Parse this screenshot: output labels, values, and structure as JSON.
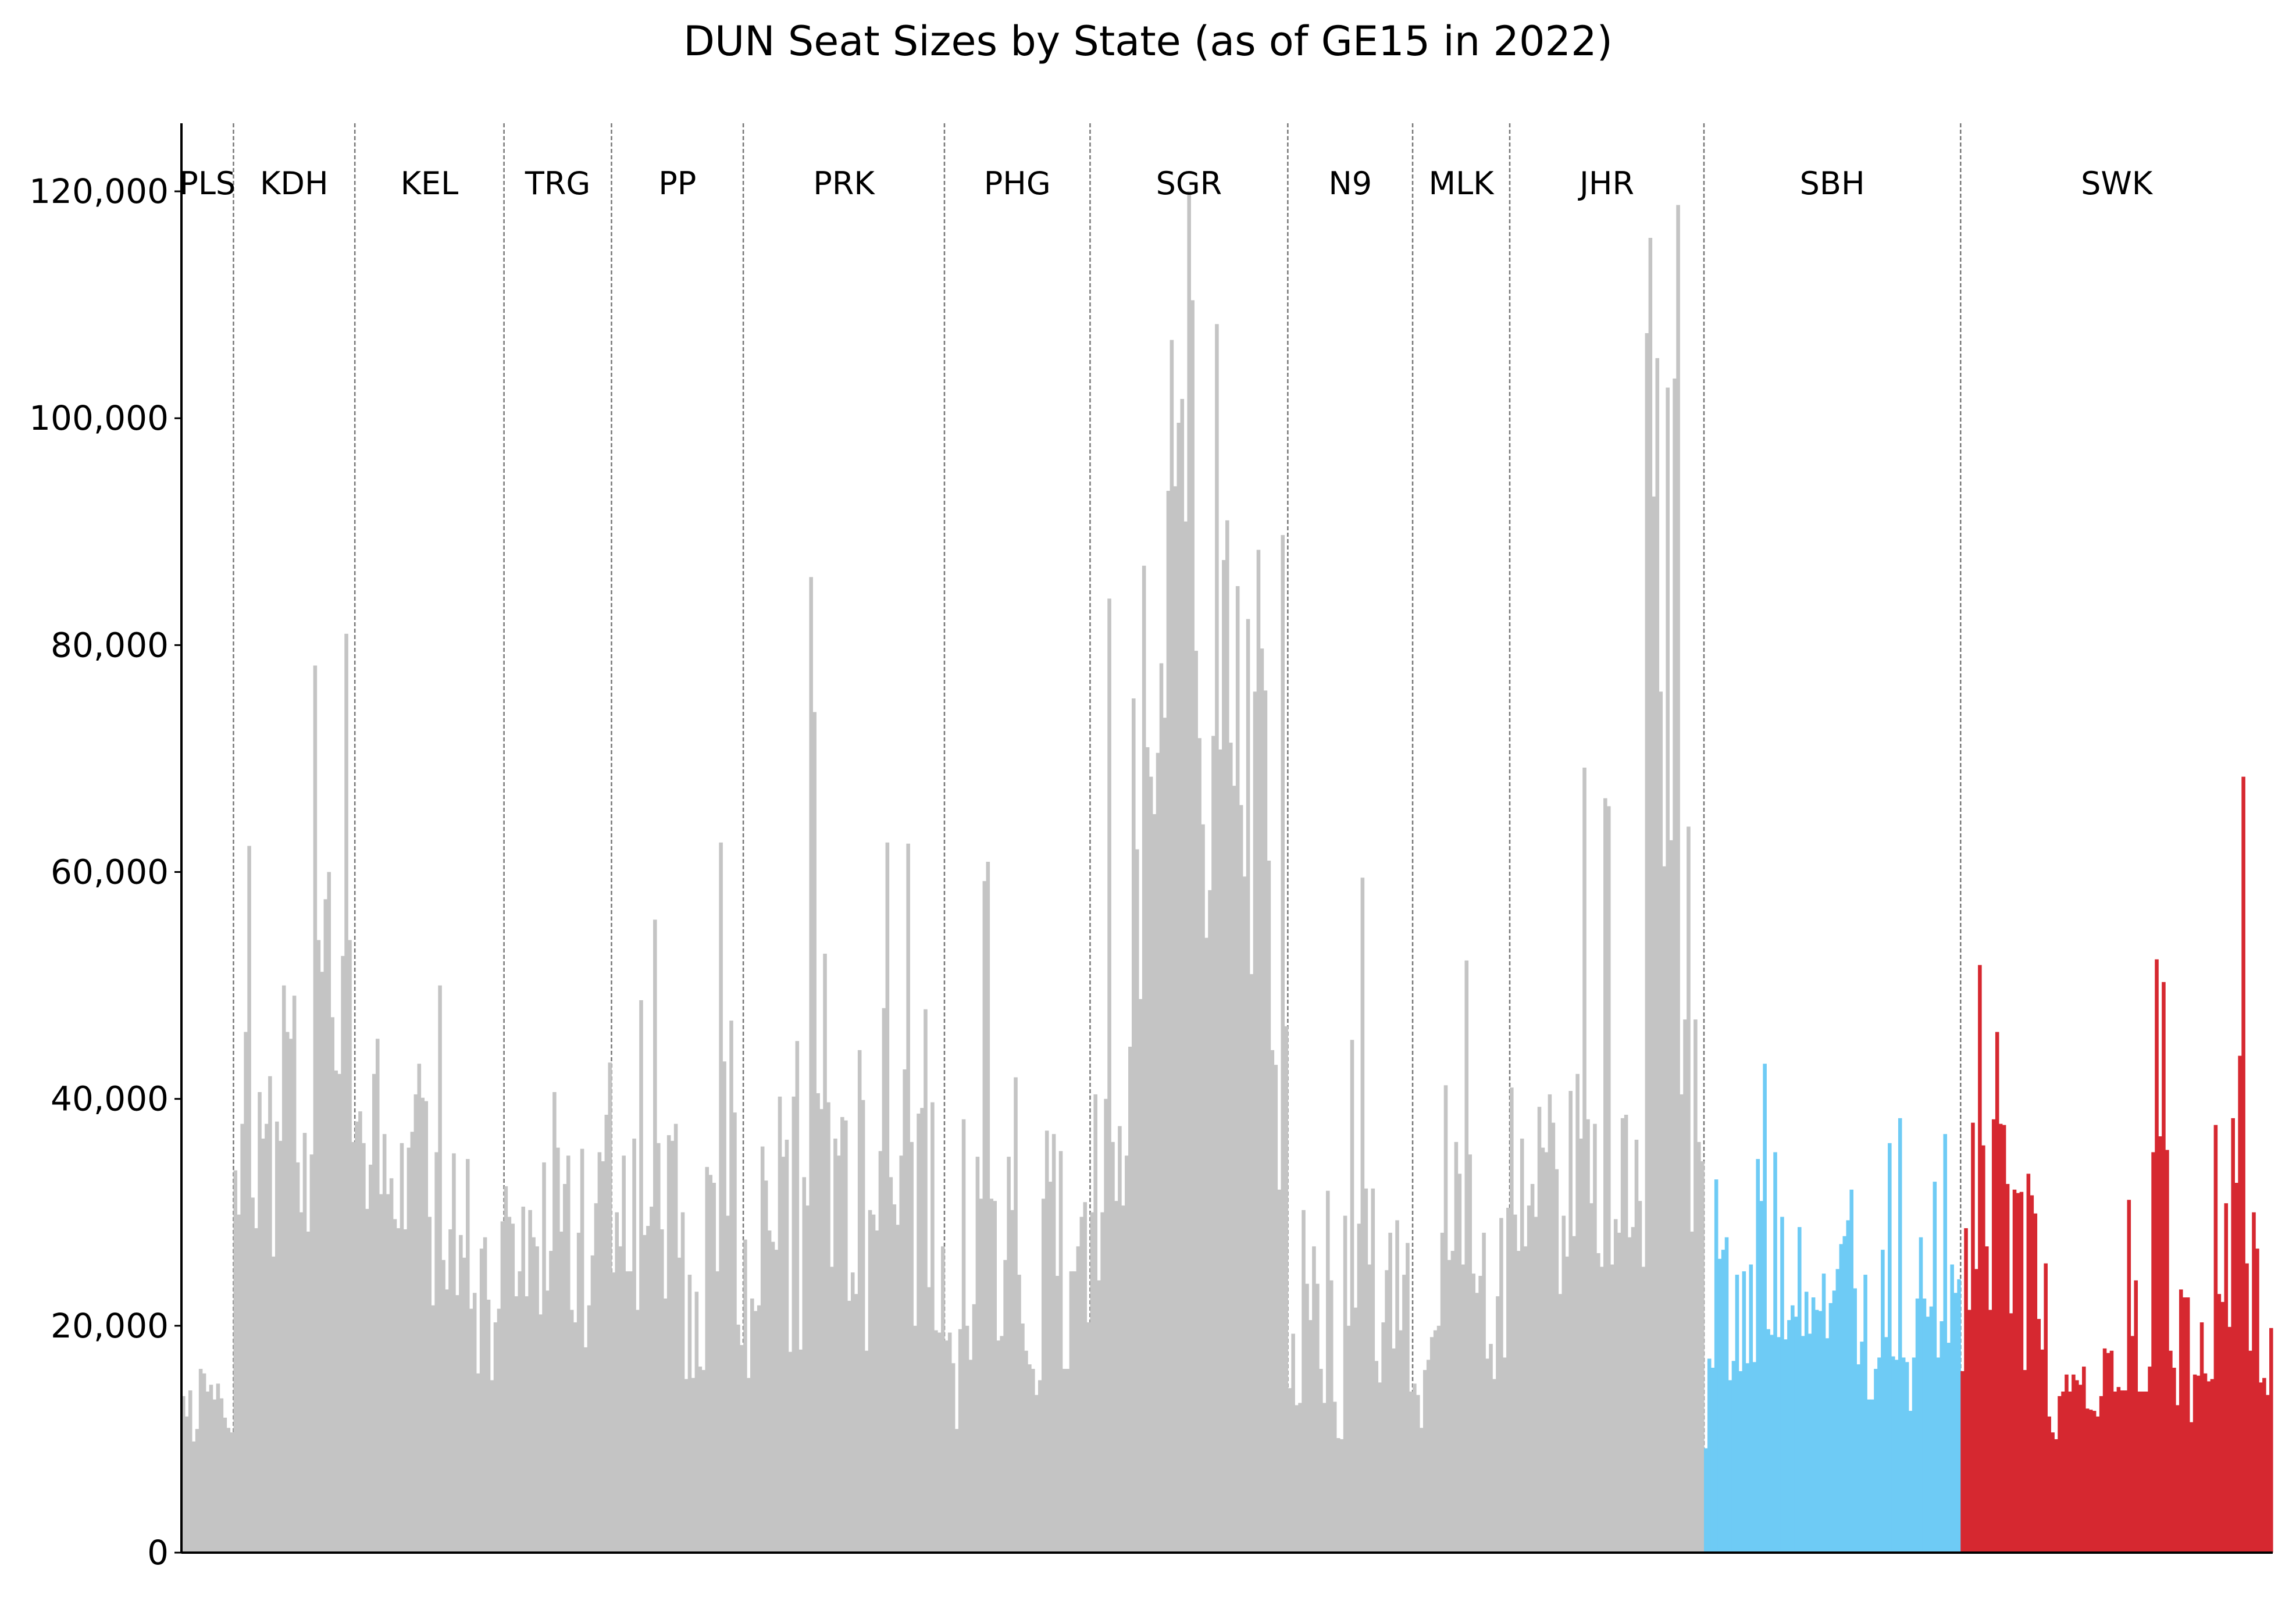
{
  "chart_data": {
    "type": "bar",
    "title": "DUN Seat Sizes by State (as of GE15 in 2022)",
    "xlabel": "",
    "ylabel": "",
    "ylim": [
      0,
      126000
    ],
    "yticks": [
      0,
      20000,
      40000,
      60000,
      80000,
      100000,
      120000
    ],
    "ytick_labels": [
      "0",
      "20,000",
      "40,000",
      "60,000",
      "80,000",
      "100,000",
      "120,000"
    ],
    "grid": false,
    "legend": "none",
    "colors": {
      "peninsular": "#c4c4c4",
      "sabah": "#6ecbf5",
      "sarawak": "#d62830",
      "divider": "#777777"
    },
    "states": [
      {
        "code": "PLS",
        "group": "peninsular",
        "values": [
          13800,
          12000,
          14300,
          9800,
          10900,
          16200,
          15800,
          14200,
          14800,
          13500,
          14900,
          13600,
          11900,
          11000,
          10600
        ]
      },
      {
        "code": "KDH",
        "group": "peninsular",
        "values": [
          33700,
          29800,
          37800,
          45900,
          62300,
          31300,
          28600,
          40600,
          36500,
          37800,
          42000,
          26100,
          38000,
          36300,
          50000,
          45900,
          45300,
          49100,
          34400,
          30000,
          37000,
          28300,
          35100,
          78200,
          54000,
          51200,
          57600,
          60000,
          47200,
          42500,
          42200,
          52600,
          81000,
          54000,
          36200
        ]
      },
      {
        "code": "KEL",
        "group": "peninsular",
        "values": [
          38000,
          38900,
          36100,
          30300,
          34200,
          42200,
          45300,
          31600,
          36900,
          31600,
          33000,
          29400,
          28600,
          36100,
          28500,
          35700,
          37100,
          40400,
          43100,
          40100,
          39800,
          29600,
          21800,
          35300,
          50000,
          25800,
          23200,
          28500,
          35200,
          22700,
          28000,
          26000,
          34700,
          21500,
          22900,
          15800,
          26800,
          27800,
          22300,
          15200,
          20300,
          21500,
          29200
        ]
      },
      {
        "code": "TRG",
        "group": "peninsular",
        "values": [
          32300,
          29600,
          29000,
          22600,
          24800,
          30500,
          22600,
          30200,
          27800,
          27000,
          21000,
          34400,
          23100,
          26600,
          40600,
          35700,
          28300,
          32500,
          35000,
          21400,
          20300,
          28200,
          35600,
          18100,
          21800,
          26200,
          30800,
          35300,
          34500,
          38600,
          43200
        ]
      },
      {
        "code": "PP",
        "group": "peninsular",
        "values": [
          24700,
          30000,
          27000,
          35000,
          24800,
          24800,
          36500,
          21400,
          48700,
          28000,
          28800,
          30500,
          55800,
          36100,
          28500,
          22400,
          36800,
          36300,
          37800,
          26000,
          30000,
          15300,
          24500,
          15400,
          23000,
          16400,
          16100,
          34000,
          33300,
          32600,
          24800,
          62600,
          43300,
          29700,
          46900,
          38800,
          20100,
          18300
        ]
      },
      {
        "code": "PRK",
        "group": "peninsular",
        "values": [
          27600,
          15400,
          22400,
          21300,
          21800,
          35800,
          32800,
          28400,
          27400,
          26700,
          40200,
          34900,
          36400,
          17700,
          40200,
          45100,
          17900,
          33100,
          30600,
          86000,
          74100,
          40500,
          39100,
          52800,
          39700,
          25200,
          36500,
          35000,
          38400,
          38100,
          22200,
          24700,
          22800,
          44300,
          39900,
          17800,
          30200,
          29800,
          28400,
          35400,
          48000,
          62600,
          33100,
          30700,
          28900,
          35000,
          42600,
          62500,
          36200,
          20000,
          38700,
          39200,
          47900,
          23400,
          39700,
          19600,
          19400,
          27000
        ]
      },
      {
        "code": "PHG",
        "group": "peninsular",
        "values": [
          18700,
          19400,
          16700,
          10900,
          19700,
          38200,
          20000,
          17000,
          21900,
          34900,
          31200,
          59200,
          60900,
          31200,
          31000,
          18700,
          19100,
          25800,
          34900,
          30200,
          41900,
          24500,
          20200,
          17800,
          16600,
          16200,
          13900,
          15200,
          31200,
          37200,
          32700,
          36900,
          24400,
          35400,
          16200,
          16200,
          24800,
          24800,
          27000,
          29600,
          30900,
          20300
        ]
      },
      {
        "code": "SGR",
        "group": "peninsular",
        "values": [
          30000,
          40400,
          24000,
          30000,
          40000,
          84100,
          36200,
          31000,
          37600,
          30600,
          35000,
          44600,
          75300,
          62000,
          48800,
          87000,
          71000,
          68400,
          65100,
          70500,
          78400,
          73600,
          93600,
          106900,
          94000,
          99600,
          101700,
          90900,
          120000,
          110400,
          79500,
          71800,
          64200,
          54200,
          58400,
          72000,
          108300,
          70800,
          87500,
          91000,
          71400,
          67600,
          85200,
          65900,
          59600,
          82300,
          51000,
          75900,
          88400,
          79700,
          76000,
          61000,
          44300,
          43000,
          32000,
          89700,
          46400
        ]
      },
      {
        "code": "N9",
        "group": "peninsular",
        "values": [
          14500,
          19300,
          13000,
          13200,
          30200,
          23700,
          20500,
          27000,
          23700,
          16200,
          13200,
          31900,
          24000,
          13300,
          10100,
          10000,
          29700,
          20000,
          45200,
          21600,
          29000,
          59500,
          32100,
          25400,
          32100,
          16900,
          15000,
          20300,
          24900,
          28200,
          18000,
          29300,
          19600,
          24500,
          27300,
          14200
        ]
      },
      {
        "code": "MLK",
        "group": "peninsular",
        "values": [
          14900,
          13900,
          11000,
          16100,
          17000,
          19000,
          19600,
          20000,
          28200,
          41200,
          25800,
          26600,
          36200,
          33400,
          25400,
          52200,
          35100,
          24600,
          22900,
          24400,
          28200,
          17100,
          18400,
          15300,
          22600,
          29500,
          17200,
          30400
        ]
      },
      {
        "code": "JHR",
        "group": "peninsular",
        "values": [
          41000,
          29800,
          26600,
          36500,
          27000,
          30600,
          32500,
          29600,
          39300,
          35700,
          35300,
          40400,
          37900,
          33800,
          22800,
          29700,
          26100,
          40700,
          27900,
          42200,
          36500,
          69200,
          38200,
          30800,
          37800,
          26400,
          25200,
          66500,
          65800,
          25400,
          29400,
          28200,
          38300,
          38600,
          27800,
          28700,
          36400,
          31000,
          25200,
          107500,
          115900,
          93100,
          105300,
          75900,
          60500,
          102700,
          62800,
          103500,
          118800,
          40400,
          47000,
          64000,
          28300,
          47000,
          36200,
          34500
        ]
      },
      {
        "code": "SBH",
        "group": "sabah",
        "values": [
          9200,
          17100,
          16300,
          32900,
          25900,
          26700,
          27800,
          15200,
          16900,
          24500,
          16000,
          24800,
          16700,
          25400,
          16800,
          34700,
          31000,
          43100,
          19700,
          19200,
          35300,
          19000,
          29600,
          18800,
          20500,
          21800,
          20800,
          28700,
          19100,
          23000,
          19300,
          22500,
          21400,
          21300,
          24600,
          18900,
          22000,
          23100,
          25000,
          27200,
          27900,
          29300,
          32000,
          23300,
          16600,
          18600,
          24500,
          13500,
          13500,
          16200,
          17200,
          26700,
          19000,
          36100,
          17300,
          17000,
          38300,
          17200,
          16800,
          12500,
          17200,
          22400,
          27800,
          22400,
          20800,
          21700,
          32700,
          17200,
          20400,
          36900,
          18500,
          25400,
          22900,
          24100
        ]
      },
      {
        "code": "SWK",
        "group": "sarawak",
        "values": [
          16000,
          28600,
          21400,
          37900,
          25000,
          51800,
          35900,
          27000,
          21400,
          38200,
          45900,
          37800,
          37700,
          32500,
          21100,
          32000,
          31700,
          31800,
          16100,
          33400,
          31500,
          29900,
          20600,
          17900,
          25500,
          12000,
          10600,
          10000,
          13800,
          14200,
          15700,
          14200,
          15700,
          15200,
          14800,
          16400,
          12700,
          12600,
          12500,
          12000,
          13800,
          18000,
          17600,
          17800,
          14200,
          14600,
          14300,
          14300,
          31100,
          19100,
          24000,
          14200,
          14200,
          14200,
          16400,
          35300,
          52300,
          36700,
          50300,
          35500,
          17800,
          16300,
          13000,
          23200,
          22500,
          22500,
          11500,
          15700,
          15600,
          20300,
          15800,
          15100,
          15300,
          37700,
          22800,
          22100,
          30800,
          19900,
          38300,
          32600,
          43800,
          68400,
          25500,
          17800,
          30000,
          26800,
          15000,
          15400,
          13900,
          19800
        ]
      }
    ]
  }
}
